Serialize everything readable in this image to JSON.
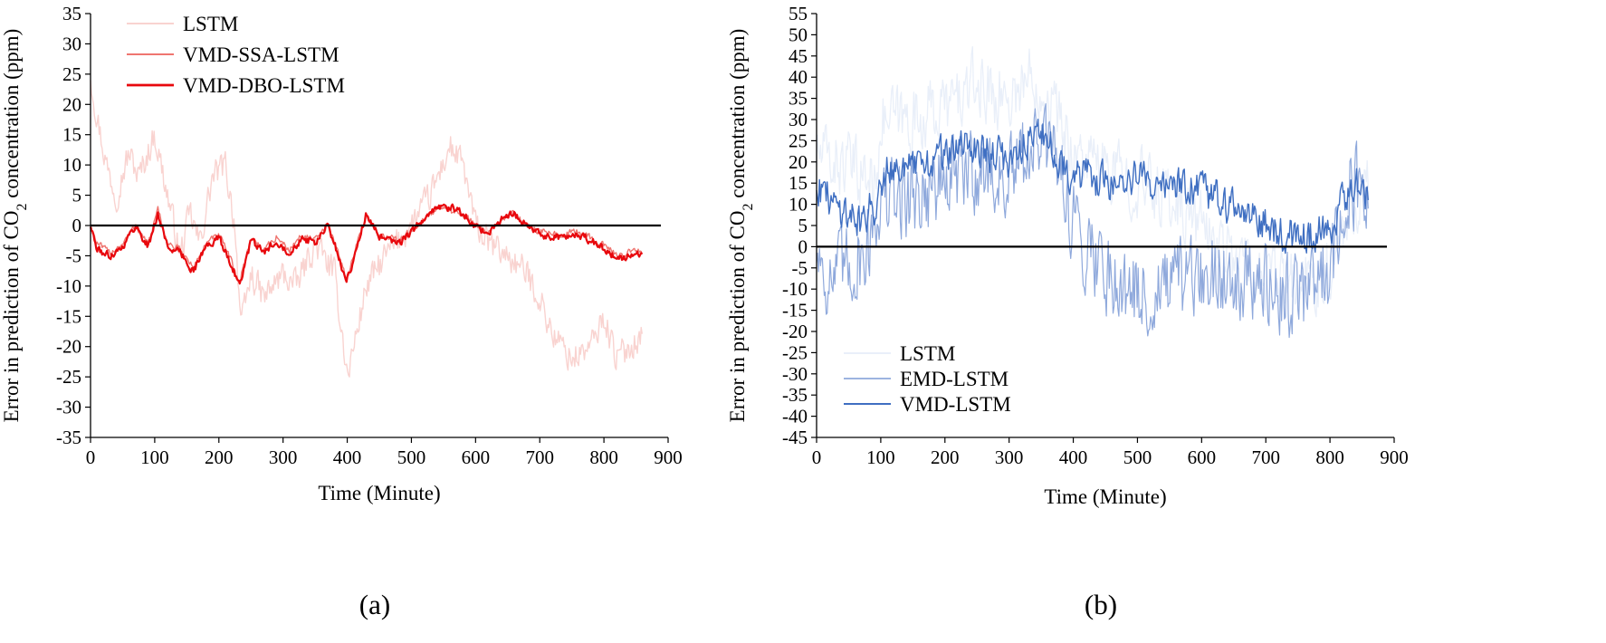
{
  "chart_data": [
    {
      "type": "line",
      "panel_label": "(a)",
      "xlabel": "Time (Minute)",
      "ylabel": {
        "pre": "Error in prediction of CO",
        "sub": "2",
        "post": " concentration (ppm)"
      },
      "xlim": [
        0,
        900
      ],
      "ylim": [
        -35,
        35
      ],
      "xticks": [
        0,
        100,
        200,
        300,
        400,
        500,
        600,
        700,
        800,
        900
      ],
      "yticks": [
        35,
        30,
        25,
        20,
        15,
        10,
        5,
        0,
        -5,
        -10,
        -15,
        -20,
        -25,
        -30,
        -35
      ],
      "legend_position": "top-left",
      "zero_line": 0,
      "series": [
        {
          "name": "LSTM",
          "color": "#f9d3d0",
          "stroke_width": 1.4,
          "noise": 2.2,
          "x": [
            0,
            10,
            25,
            40,
            60,
            75,
            100,
            120,
            140,
            155,
            170,
            190,
            210,
            225,
            235,
            250,
            270,
            300,
            320,
            350,
            380,
            395,
            400,
            430,
            460,
            500,
            530,
            560,
            580,
            600,
            620,
            650,
            680,
            700,
            720,
            750,
            780,
            800,
            820,
            840,
            860
          ],
          "y": [
            25,
            18,
            10,
            5,
            12,
            8,
            15,
            5,
            -5,
            2,
            -3,
            8,
            10,
            0,
            -17,
            -8,
            -12,
            -8,
            -10,
            -3,
            -8,
            -20,
            -25,
            -10,
            -5,
            0,
            5,
            13,
            10,
            0,
            -3,
            -5,
            -8,
            -12,
            -18,
            -22,
            -20,
            -15,
            -22,
            -20,
            -18
          ]
        },
        {
          "name": "VMD-SSA-LSTM",
          "color": "#ef7570",
          "stroke_width": 1.4,
          "noise": 0.5,
          "x": [
            0,
            10,
            30,
            50,
            70,
            90,
            105,
            120,
            140,
            160,
            180,
            200,
            220,
            232,
            250,
            270,
            290,
            310,
            330,
            350,
            370,
            385,
            398,
            410,
            430,
            450,
            480,
            510,
            540,
            560,
            580,
            600,
            620,
            640,
            660,
            680,
            700,
            730,
            760,
            790,
            820,
            850,
            860
          ],
          "y": [
            0,
            -3,
            -4.5,
            -3,
            0,
            -3,
            2.5,
            -3,
            -4,
            -7,
            -3,
            -1.5,
            -6,
            -9.5,
            -2,
            -4,
            -2,
            -4,
            -1.5,
            -2.5,
            0,
            -4,
            -9,
            -5,
            2,
            -1.5,
            -2.5,
            0,
            3,
            2.5,
            2,
            0,
            -1,
            1,
            2,
            0,
            -1,
            -1.5,
            -1,
            -2.5,
            -5,
            -4,
            -5
          ]
        },
        {
          "name": "VMD-DBO-LSTM",
          "color": "#e8080d",
          "stroke_width": 2.2,
          "noise": 0.55,
          "x": [
            0,
            10,
            30,
            50,
            70,
            90,
            105,
            120,
            140,
            160,
            180,
            200,
            220,
            232,
            250,
            270,
            290,
            310,
            330,
            350,
            370,
            385,
            398,
            410,
            430,
            450,
            480,
            510,
            540,
            560,
            580,
            600,
            620,
            640,
            660,
            680,
            700,
            730,
            760,
            790,
            820,
            850,
            860
          ],
          "y": [
            0,
            -4,
            -5,
            -3.5,
            0,
            -3.5,
            2,
            -3.5,
            -4.5,
            -7.5,
            -3.5,
            -2,
            -6.5,
            -10,
            -2.5,
            -4.5,
            -2.5,
            -4.5,
            -2,
            -3,
            0,
            -4.5,
            -9.5,
            -5.5,
            2,
            -2,
            -3,
            0,
            3,
            3,
            2,
            0,
            -1.5,
            1,
            2,
            0,
            -1.5,
            -2,
            -1.5,
            -3,
            -5.5,
            -4.5,
            -5
          ]
        }
      ]
    },
    {
      "type": "line",
      "panel_label": "(b)",
      "xlabel": "Time (Minute)",
      "ylabel": {
        "pre": "Error in prediction of CO",
        "sub": "2",
        "post": " concentration (ppm)"
      },
      "xlim": [
        0,
        900
      ],
      "ylim": [
        -45,
        55
      ],
      "xticks": [
        0,
        100,
        200,
        300,
        400,
        500,
        600,
        700,
        800,
        900
      ],
      "yticks": [
        55,
        50,
        45,
        40,
        35,
        30,
        25,
        20,
        15,
        10,
        5,
        0,
        -5,
        -10,
        -15,
        -20,
        -25,
        -30,
        -35,
        -40,
        -45
      ],
      "legend_position": "bottom-left",
      "zero_line": 0,
      "series": [
        {
          "name": "LSTM",
          "color": "#e9eff9",
          "stroke_width": 1.3,
          "noise": 7,
          "x": [
            0,
            30,
            60,
            90,
            100,
            150,
            200,
            250,
            300,
            330,
            350,
            380,
            400,
            450,
            500,
            550,
            600,
            650,
            700,
            750,
            800,
            830,
            860
          ],
          "y": [
            22,
            20,
            18,
            15,
            30,
            30,
            33,
            38,
            35,
            40,
            38,
            30,
            22,
            18,
            15,
            12,
            5,
            -2,
            -8,
            -10,
            -5,
            10,
            15
          ]
        },
        {
          "name": "EMD-LSTM",
          "color": "#8fa9dc",
          "stroke_width": 1.2,
          "noise": 9,
          "x": [
            0,
            20,
            50,
            80,
            95,
            150,
            200,
            250,
            300,
            340,
            380,
            400,
            450,
            500,
            550,
            600,
            650,
            700,
            750,
            800,
            830,
            860
          ],
          "y": [
            0,
            -8,
            -5,
            0,
            10,
            12,
            15,
            18,
            15,
            25,
            20,
            5,
            -5,
            -12,
            -10,
            -8,
            -5,
            -10,
            -12,
            -5,
            15,
            10
          ]
        },
        {
          "name": "VMD-LSTM",
          "color": "#3f6fc2",
          "stroke_width": 1.4,
          "noise": 4,
          "x": [
            0,
            15,
            40,
            70,
            90,
            110,
            150,
            200,
            250,
            300,
            340,
            370,
            400,
            450,
            500,
            550,
            600,
            650,
            700,
            750,
            800,
            840,
            860
          ],
          "y": [
            15,
            12,
            9,
            6,
            10,
            20,
            18,
            22,
            24,
            20,
            28,
            22,
            17,
            15,
            16,
            15,
            13,
            9,
            5,
            2,
            4,
            16,
            10
          ]
        }
      ]
    }
  ]
}
